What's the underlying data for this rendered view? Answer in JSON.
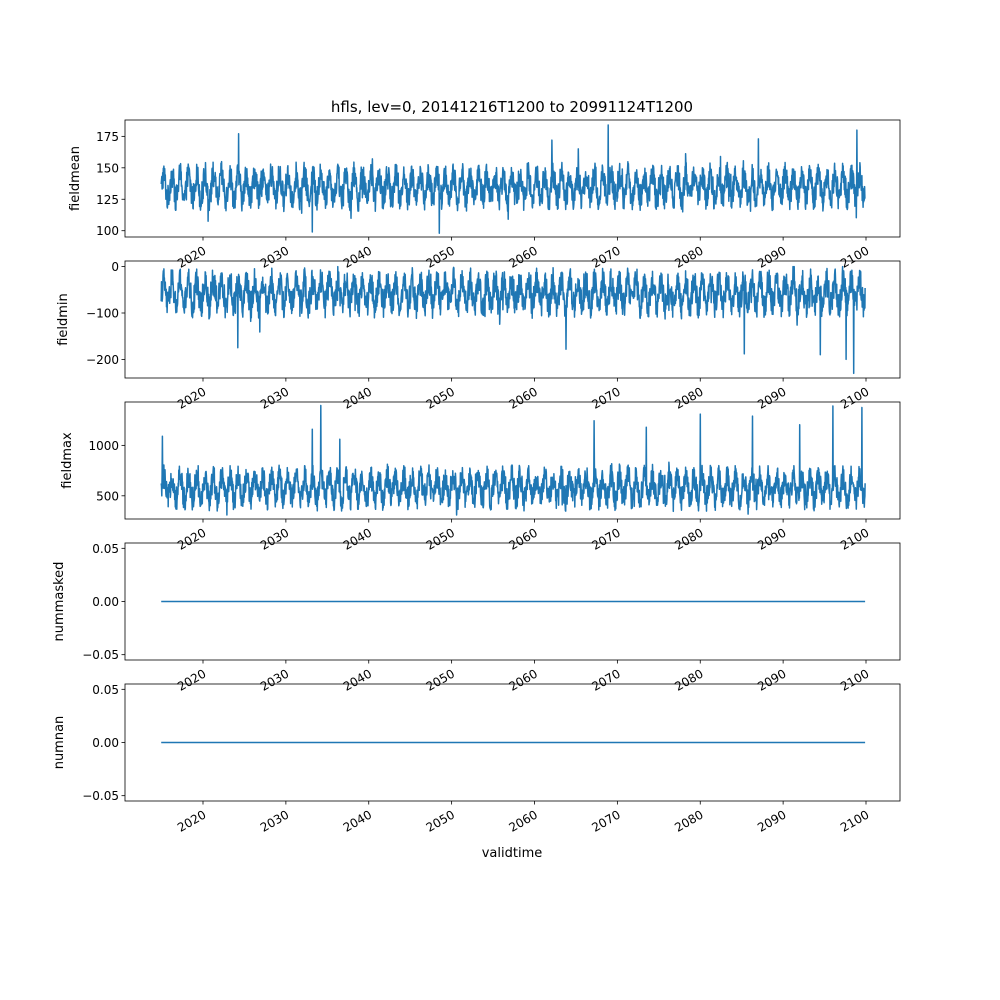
{
  "chart_data": {
    "type": "line",
    "title": "hfls, lev=0, 20141216T1200 to 20991124T1200",
    "xlabel": "validtime",
    "x_range": [
      "2014-12-16T12:00",
      "2099-11-24T12:00"
    ],
    "x_ticks": [
      "2020",
      "2030",
      "2040",
      "2050",
      "2060",
      "2070",
      "2080",
      "2090",
      "2100"
    ],
    "line_color": "#1f77b4",
    "grid": false,
    "panels": [
      {
        "ylabel": "fieldmean",
        "ylim": [
          95,
          188
        ],
        "yticks": [
          100,
          125,
          150,
          175
        ],
        "ytick_labels": [
          "100",
          "125",
          "150",
          "175"
        ],
        "series": {
          "kind": "daily-noisy",
          "x_start": "2014-12-16",
          "x_end": "2099-11-24",
          "typical_low": 118,
          "typical_high": 152,
          "min": 98,
          "max": 184,
          "spikes": [
            [
              2024.3,
              177
            ],
            [
              2033.2,
              99
            ],
            [
              2048.5,
              98
            ],
            [
              2068.9,
              184
            ],
            [
              2098.9,
              180
            ],
            [
              2062.1,
              172
            ],
            [
              2087.0,
              173
            ]
          ]
        }
      },
      {
        "ylabel": "fieldmin",
        "ylim": [
          -240,
          12
        ],
        "yticks": [
          -200,
          -100,
          0
        ],
        "ytick_labels": [
          "−200",
          "−100",
          "0"
        ],
        "series": {
          "kind": "daily-noisy",
          "x_start": "2014-12-16",
          "x_end": "2099-11-24",
          "typical_low": -105,
          "typical_high": -10,
          "min": -230,
          "max": 0,
          "spikes": [
            [
              2024.2,
              -175
            ],
            [
              2063.8,
              -178
            ],
            [
              2085.3,
              -188
            ],
            [
              2094.5,
              -190
            ],
            [
              2098.5,
              -230
            ],
            [
              2097.6,
              -200
            ]
          ]
        }
      },
      {
        "ylabel": "fieldmax",
        "ylim": [
          270,
          1430
        ],
        "yticks": [
          500,
          1000
        ],
        "ytick_labels": [
          "500",
          "1000"
        ],
        "series": {
          "kind": "daily-noisy",
          "x_start": "2014-12-16",
          "x_end": "2099-11-24",
          "typical_low": 380,
          "typical_high": 780,
          "min": 310,
          "max": 1395,
          "spikes": [
            [
              2015.1,
              1090
            ],
            [
              2033.2,
              1160
            ],
            [
              2034.2,
              1395
            ],
            [
              2036.5,
              1060
            ],
            [
              2067.2,
              1245
            ],
            [
              2080.0,
              1310
            ],
            [
              2086.3,
              1290
            ],
            [
              2096.0,
              1390
            ],
            [
              2099.5,
              1375
            ],
            [
              2073.5,
              1180
            ],
            [
              2092.0,
              1205
            ]
          ]
        }
      },
      {
        "ylabel": "nummasked",
        "ylim": [
          -0.055,
          0.055
        ],
        "yticks": [
          -0.05,
          0.0,
          0.05
        ],
        "ytick_labels": [
          "−0.05",
          "0.00",
          "0.05"
        ],
        "series": {
          "kind": "constant",
          "value": 0.0,
          "x_start": "2014-12-16",
          "x_end": "2099-11-24"
        }
      },
      {
        "ylabel": "numnan",
        "ylim": [
          -0.055,
          0.055
        ],
        "yticks": [
          -0.05,
          0.0,
          0.05
        ],
        "ytick_labels": [
          "−0.05",
          "0.00",
          "0.05"
        ],
        "series": {
          "kind": "constant",
          "value": 0.0,
          "x_start": "2014-12-16",
          "x_end": "2099-11-24"
        }
      }
    ]
  }
}
